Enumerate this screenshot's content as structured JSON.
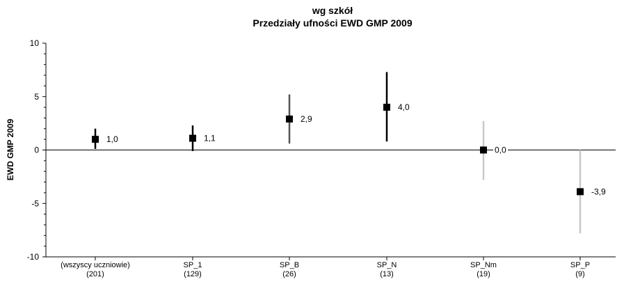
{
  "chart_data": {
    "type": "errorbar",
    "title": "wg szkół",
    "subtitle": "Przedziały ufności EWD GMP 2009",
    "ylabel": "EWD GMP 2009",
    "xlabel": "",
    "ylim": [
      -10,
      10
    ],
    "yticks": [
      10,
      5,
      0,
      -5,
      -10
    ],
    "grid": false,
    "categories": [
      {
        "name": "(wszyscy uczniowie)",
        "n": "(201)"
      },
      {
        "name": "SP_1",
        "n": "(129)"
      },
      {
        "name": "SP_B",
        "n": "(26)"
      },
      {
        "name": "SP_N",
        "n": "(13)"
      },
      {
        "name": "SP_Nm",
        "n": "(19)"
      },
      {
        "name": "SP_P",
        "n": "(9)"
      }
    ],
    "points": [
      {
        "value": 1.0,
        "low": 0.1,
        "high": 2.0,
        "label": "1,0",
        "color": "#000000"
      },
      {
        "value": 1.1,
        "low": -0.1,
        "high": 2.3,
        "label": "1,1",
        "color": "#000000"
      },
      {
        "value": 2.9,
        "low": 0.6,
        "high": 5.2,
        "label": "2,9",
        "color": "#555555"
      },
      {
        "value": 4.0,
        "low": 0.8,
        "high": 7.3,
        "label": "4,0",
        "color": "#000000"
      },
      {
        "value": 0.0,
        "low": -2.8,
        "high": 2.7,
        "label": "0,0",
        "color": "#c8c8c8"
      },
      {
        "value": -3.9,
        "low": -7.8,
        "high": 0.0,
        "label": "-3,9",
        "color": "#c8c8c8"
      }
    ]
  }
}
